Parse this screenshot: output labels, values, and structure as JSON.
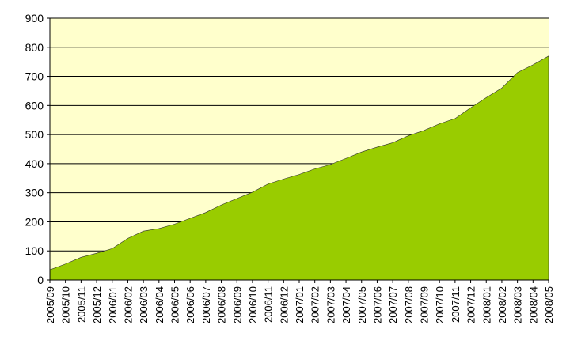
{
  "chart_data": {
    "type": "area",
    "title": "",
    "xlabel": "",
    "ylabel": "",
    "ylim": [
      0,
      900
    ],
    "yticks": [
      0,
      100,
      200,
      300,
      400,
      500,
      600,
      700,
      800,
      900
    ],
    "grid": true,
    "legend": "none",
    "colors": {
      "plot_background": "#FFFFCC",
      "area_fill": "#99CC00",
      "area_stroke": "#333333",
      "grid": "#000000"
    },
    "categories": [
      "2005/09",
      "2005/10",
      "2005/11",
      "2005/12",
      "2006/01",
      "2006/02",
      "2006/03",
      "2006/04",
      "2006/05",
      "2006/06",
      "2006/07",
      "2006/08",
      "2006/09",
      "2006/10",
      "2006/11",
      "2006/12",
      "2007/01",
      "2007/02",
      "2007/03",
      "2007/04",
      "2007/05",
      "2007/06",
      "2007/07",
      "2007/08",
      "2007/09",
      "2007/10",
      "2007/11",
      "2007/12",
      "2008/01",
      "2008/02",
      "2008/03",
      "2008/04",
      "2008/05"
    ],
    "series": [
      {
        "values": [
          35,
          55,
          78,
          92,
          108,
          143,
          168,
          177,
          192,
          212,
          232,
          258,
          280,
          302,
          330,
          347,
          363,
          382,
          397,
          418,
          440,
          457,
          472,
          496,
          514,
          537,
          555,
          592,
          627,
          660,
          713,
          740,
          770
        ]
      }
    ]
  }
}
